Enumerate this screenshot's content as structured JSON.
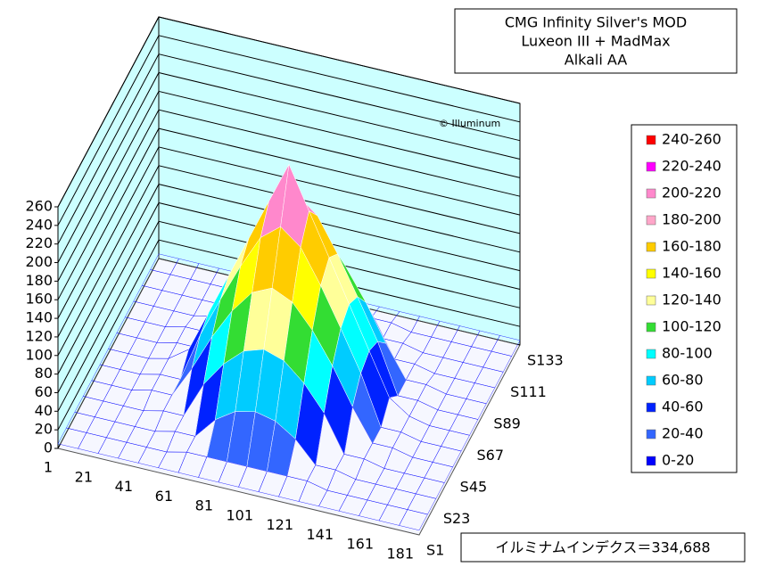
{
  "chart_data": {
    "type": "surface",
    "title": [
      "CMG Infinity  Silver's MOD",
      "Luxeon III + MadMax",
      "Alkali AA"
    ],
    "watermark": "© Illuminum",
    "annotation": "イルミナムインデクス＝334,688",
    "categories": [
      1,
      null,
      21,
      null,
      41,
      null,
      61,
      null,
      81,
      null,
      101,
      null,
      121,
      null,
      141,
      null,
      161,
      null,
      181
    ],
    "series_labels": [
      "S1",
      null,
      "S23",
      null,
      "S45",
      null,
      "S67",
      null,
      "S89",
      null,
      "S111",
      null,
      "S133"
    ],
    "values": [
      [
        5,
        5,
        5,
        5,
        5,
        5,
        5,
        5,
        5,
        5,
        5,
        5,
        5,
        5,
        5,
        5,
        5,
        5,
        5
      ],
      [
        5,
        5,
        5,
        5,
        5,
        5,
        10,
        10,
        10,
        10,
        10,
        10,
        10,
        5,
        5,
        5,
        5,
        5,
        5
      ],
      [
        5,
        5,
        5,
        5,
        5,
        10,
        10,
        33,
        47,
        52,
        47,
        33,
        10,
        10,
        5,
        5,
        5,
        5,
        5
      ],
      [
        5,
        5,
        5,
        5,
        10,
        10,
        49,
        76,
        95,
        102,
        95,
        76,
        49,
        10,
        10,
        5,
        5,
        5,
        5
      ],
      [
        5,
        5,
        5,
        10,
        10,
        44,
        83,
        116,
        141,
        151,
        141,
        116,
        83,
        44,
        10,
        10,
        5,
        5,
        5
      ],
      [
        5,
        5,
        5,
        10,
        10,
        63,
        106,
        147,
        183,
        200,
        183,
        147,
        106,
        63,
        10,
        10,
        5,
        5,
        5
      ],
      [
        5,
        5,
        5,
        10,
        25,
        70,
        115,
        160,
        205,
        250,
        205,
        160,
        115,
        70,
        25,
        10,
        5,
        5,
        5
      ],
      [
        5,
        5,
        5,
        10,
        10,
        63,
        106,
        147,
        183,
        200,
        183,
        147,
        106,
        63,
        10,
        10,
        5,
        5,
        5
      ],
      [
        5,
        5,
        5,
        10,
        10,
        44,
        83,
        116,
        141,
        151,
        141,
        116,
        83,
        44,
        10,
        10,
        5,
        5,
        5
      ],
      [
        5,
        5,
        5,
        5,
        10,
        10,
        49,
        76,
        95,
        102,
        95,
        76,
        49,
        10,
        10,
        5,
        5,
        5,
        5
      ],
      [
        5,
        5,
        5,
        5,
        5,
        10,
        10,
        33,
        47,
        52,
        47,
        33,
        10,
        10,
        5,
        5,
        5,
        5,
        5
      ],
      [
        5,
        5,
        5,
        5,
        5,
        5,
        10,
        10,
        10,
        10,
        10,
        10,
        10,
        5,
        5,
        5,
        5,
        5,
        5
      ],
      [
        5,
        5,
        5,
        5,
        5,
        5,
        5,
        5,
        5,
        5,
        5,
        5,
        5,
        5,
        5,
        5,
        5,
        5,
        5
      ]
    ],
    "zlim": [
      0,
      260
    ],
    "zticks": [
      0,
      20,
      40,
      60,
      80,
      100,
      120,
      140,
      160,
      180,
      200,
      220,
      240,
      260
    ],
    "grid": true,
    "bands": [
      {
        "from": 240,
        "to": 260,
        "label": "240-260",
        "color": "#ff0000"
      },
      {
        "from": 220,
        "to": 240,
        "label": "220-240",
        "color": "#ff00ff"
      },
      {
        "from": 200,
        "to": 220,
        "label": "200-220",
        "color": "#ff88cc"
      },
      {
        "from": 180,
        "to": 200,
        "label": "180-200",
        "color": "#ffa6c9"
      },
      {
        "from": 160,
        "to": 180,
        "label": "160-180",
        "color": "#ffcc00"
      },
      {
        "from": 140,
        "to": 160,
        "label": "140-160",
        "color": "#ffff00"
      },
      {
        "from": 120,
        "to": 140,
        "label": "120-140",
        "color": "#ffff99"
      },
      {
        "from": 100,
        "to": 120,
        "label": "100-120",
        "color": "#33dd33"
      },
      {
        "from": 80,
        "to": 100,
        "label": "80-100",
        "color": "#00ffff"
      },
      {
        "from": 60,
        "to": 80,
        "label": "60-80",
        "color": "#00ccff"
      },
      {
        "from": 40,
        "to": 60,
        "label": "40-60",
        "color": "#0022ff"
      },
      {
        "from": 20,
        "to": 40,
        "label": "20-40",
        "color": "#3366ff"
      },
      {
        "from": 0,
        "to": 20,
        "label": "0-20",
        "color": "#0000ff"
      }
    ]
  }
}
